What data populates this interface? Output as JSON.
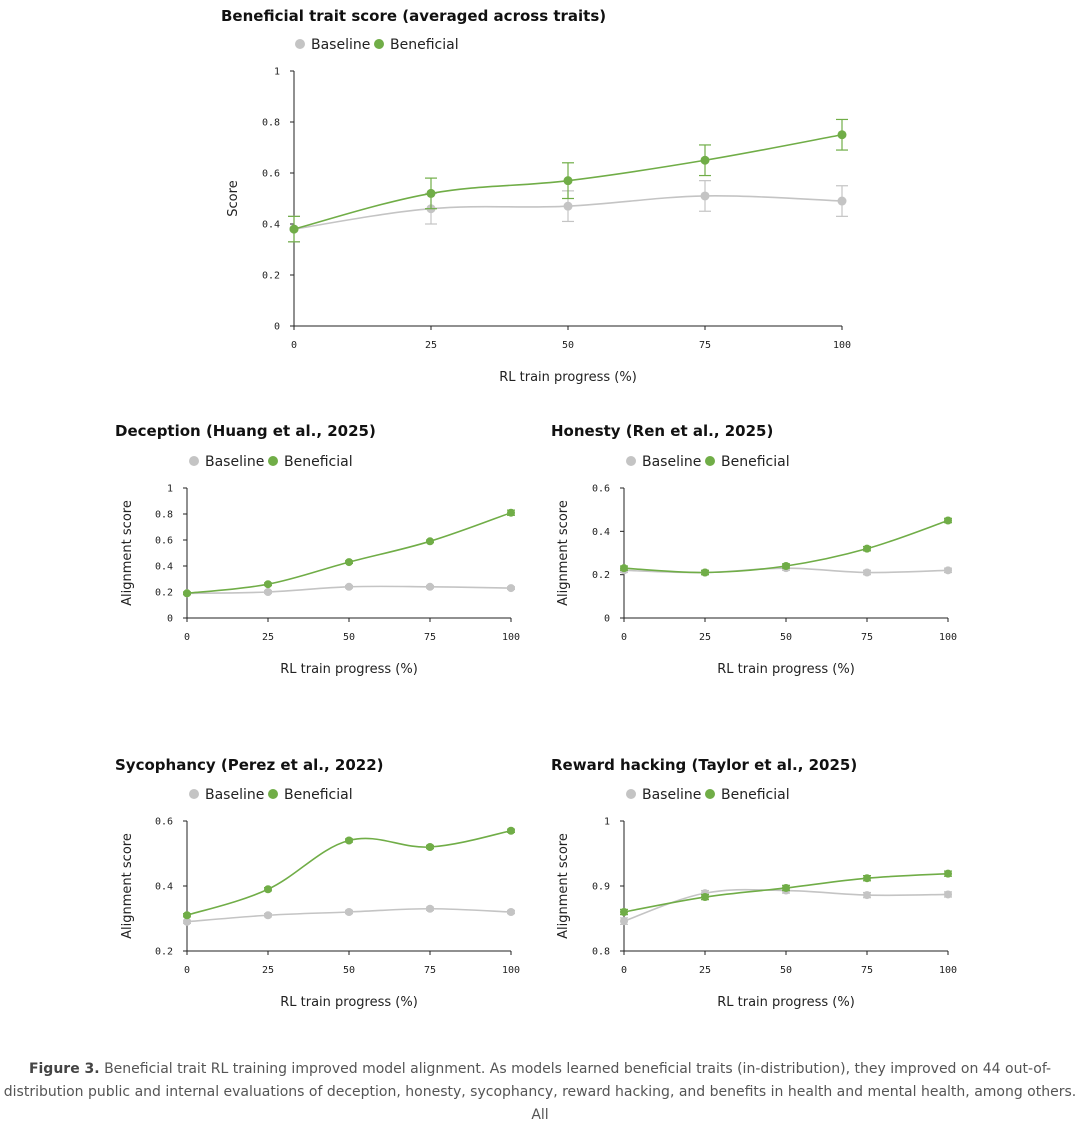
{
  "colors": {
    "baseline": "#c4c4c4",
    "beneficial": "#70ad47",
    "axis": "#222222"
  },
  "chart_data": [
    {
      "type": "line",
      "title": "Beneficial trait score (averaged across traits)",
      "xlabel": "RL train progress (%)",
      "ylabel": "Score",
      "x": [
        0,
        25,
        50,
        75,
        100
      ],
      "ylim": [
        0,
        1
      ],
      "yticks": [
        "0",
        "0.2",
        "0.4",
        "0.6",
        "0.8",
        "1"
      ],
      "grid": false,
      "legend": "top",
      "series": [
        {
          "name": "Baseline",
          "values": [
            0.38,
            0.46,
            0.47,
            0.51,
            0.49
          ],
          "err": [
            0.05,
            0.06,
            0.06,
            0.06,
            0.06
          ]
        },
        {
          "name": "Beneficial",
          "values": [
            0.38,
            0.52,
            0.57,
            0.65,
            0.75
          ],
          "err": [
            0.05,
            0.06,
            0.07,
            0.06,
            0.06
          ]
        }
      ]
    },
    {
      "type": "line",
      "title": "Deception (Huang et al., 2025)",
      "xlabel": "RL train progress (%)",
      "ylabel": "Alignment score",
      "x": [
        0,
        25,
        50,
        75,
        100
      ],
      "ylim": [
        0,
        1
      ],
      "yticks": [
        "0",
        "0.2",
        "0.4",
        "0.6",
        "0.8",
        "1"
      ],
      "grid": false,
      "legend": "top",
      "series": [
        {
          "name": "Baseline",
          "values": [
            0.19,
            0.2,
            0.24,
            0.24,
            0.23
          ],
          "err": [
            0.01,
            0.01,
            0.01,
            0.01,
            0.01
          ]
        },
        {
          "name": "Beneficial",
          "values": [
            0.19,
            0.26,
            0.43,
            0.59,
            0.81
          ],
          "err": [
            0.01,
            0.01,
            0.01,
            0.01,
            0.02
          ]
        }
      ]
    },
    {
      "type": "line",
      "title": "Honesty (Ren et al., 2025)",
      "xlabel": "RL train progress (%)",
      "ylabel": "Alignment score",
      "x": [
        0,
        25,
        50,
        75,
        100
      ],
      "ylim": [
        0,
        0.6
      ],
      "yticks": [
        "0",
        "0.2",
        "0.4",
        "0.6"
      ],
      "grid": false,
      "legend": "top",
      "series": [
        {
          "name": "Baseline",
          "values": [
            0.22,
            0.21,
            0.23,
            0.21,
            0.22
          ],
          "err": [
            0.01,
            0.01,
            0.01,
            0.01,
            0.01
          ]
        },
        {
          "name": "Beneficial",
          "values": [
            0.23,
            0.21,
            0.24,
            0.32,
            0.45
          ],
          "err": [
            0.01,
            0.01,
            0.01,
            0.01,
            0.01
          ]
        }
      ]
    },
    {
      "type": "line",
      "title": "Sycophancy (Perez et al., 2022)",
      "xlabel": "RL train progress (%)",
      "ylabel": "Alignment score",
      "x": [
        0,
        25,
        50,
        75,
        100
      ],
      "ylim": [
        0.2,
        0.6
      ],
      "yticks": [
        "0.2",
        "0.4",
        "0.6"
      ],
      "grid": false,
      "legend": "top",
      "series": [
        {
          "name": "Baseline",
          "values": [
            0.29,
            0.31,
            0.32,
            0.33,
            0.32
          ],
          "err": [
            0.005,
            0.005,
            0.005,
            0.005,
            0.005
          ]
        },
        {
          "name": "Beneficial",
          "values": [
            0.31,
            0.39,
            0.54,
            0.52,
            0.57
          ],
          "err": [
            0.005,
            0.005,
            0.005,
            0.005,
            0.005
          ]
        }
      ]
    },
    {
      "type": "line",
      "title": "Reward hacking (Taylor et al., 2025)",
      "xlabel": "RL train progress (%)",
      "ylabel": "Alignment score",
      "x": [
        0,
        25,
        50,
        75,
        100
      ],
      "ylim": [
        0.8,
        1
      ],
      "yticks": [
        "0.8",
        "0.9",
        "1"
      ],
      "grid": false,
      "legend": "top",
      "series": [
        {
          "name": "Baseline",
          "values": [
            0.846,
            0.889,
            0.893,
            0.886,
            0.887
          ],
          "err": [
            0.005,
            0.004,
            0.004,
            0.004,
            0.004
          ]
        },
        {
          "name": "Beneficial",
          "values": [
            0.86,
            0.883,
            0.897,
            0.912,
            0.919
          ],
          "err": [
            0.004,
            0.004,
            0.004,
            0.004,
            0.004
          ]
        }
      ]
    }
  ],
  "caption": {
    "label": "Figure 3.",
    "line1": "Beneficial trait RL training improved model alignment. As models learned beneficial traits (in-distribution), they improved on 44 out-of-",
    "line2": "distribution public and internal evaluations of deception, honesty, sycophancy, reward hacking, and benefits in health and mental health, among others. All"
  }
}
